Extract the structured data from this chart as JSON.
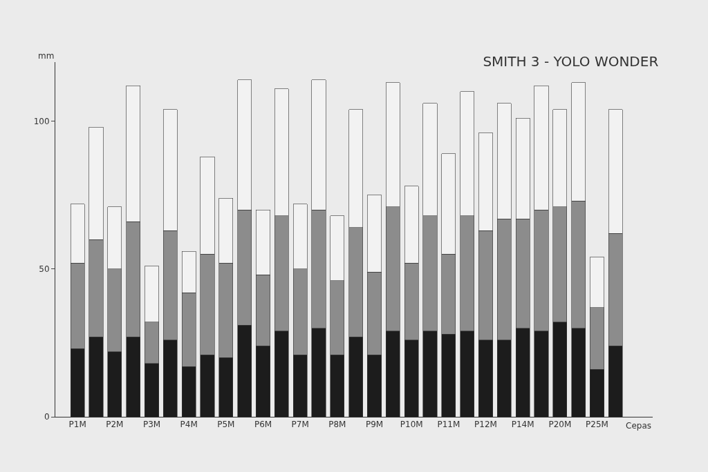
{
  "chart_data": {
    "type": "bar",
    "title": "SMITH 3 - YOLO WONDER",
    "ylabel": "mm",
    "xlabel": "Cepas",
    "stacked": true,
    "categories": [
      "P1M",
      null,
      "P2M",
      null,
      "P3M",
      null,
      "P4M",
      null,
      "P5M",
      null,
      "P6M",
      null,
      "P7M",
      null,
      "P8M",
      null,
      "P9M",
      null,
      "P10M",
      null,
      "P11M",
      null,
      "P12M",
      null,
      "P14M",
      null,
      "P20M",
      null,
      "P25M",
      null
    ],
    "series": [
      {
        "color": "#1c1c1c",
        "values": [
          23,
          27,
          22,
          27,
          18,
          26,
          17,
          21,
          20,
          31,
          24,
          29,
          21,
          30,
          21,
          27,
          21,
          29,
          26,
          29,
          28,
          29,
          26,
          26,
          30,
          29,
          32,
          30,
          16,
          24
        ]
      },
      {
        "color": "#8c8c8c",
        "values": [
          29,
          33,
          28,
          39,
          14,
          37,
          25,
          34,
          32,
          39,
          24,
          39,
          29,
          40,
          25,
          37,
          28,
          42,
          26,
          39,
          27,
          39,
          37,
          41,
          37,
          41,
          39,
          43,
          21,
          38
        ]
      },
      {
        "color": "#f2f2f2",
        "values": [
          20,
          38,
          21,
          46,
          19,
          41,
          14,
          33,
          22,
          44,
          22,
          43,
          22,
          44,
          22,
          40,
          26,
          42,
          26,
          38,
          34,
          42,
          33,
          39,
          34,
          42,
          33,
          40,
          17,
          42
        ]
      }
    ],
    "ylim": [
      0,
      120
    ],
    "yticks": [
      0,
      50,
      100
    ],
    "grid": false
  }
}
